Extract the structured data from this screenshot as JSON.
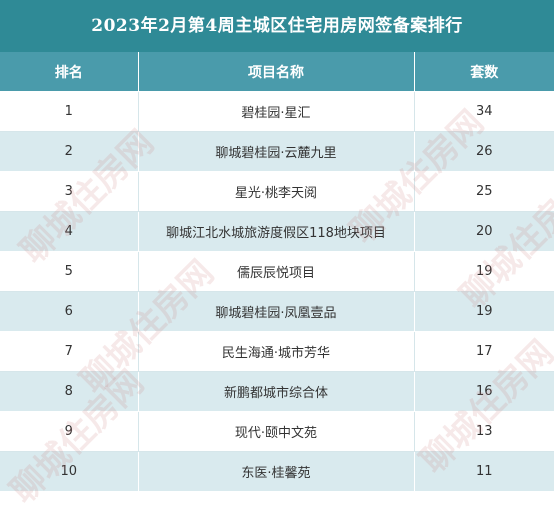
{
  "title": "2023年2月第4周主城区住宅用房网签备案排行",
  "headers": {
    "rank": "排名",
    "project": "项目名称",
    "units": "套数"
  },
  "rows": [
    {
      "rank": "1",
      "project": "碧桂园·星汇",
      "units": "34"
    },
    {
      "rank": "2",
      "project": "聊城碧桂园·云麓九里",
      "units": "26"
    },
    {
      "rank": "3",
      "project": "星光·桃李天阅",
      "units": "25"
    },
    {
      "rank": "4",
      "project": "聊城江北水城旅游度假区118地块项目",
      "units": "20"
    },
    {
      "rank": "5",
      "project": "儒辰辰悦项目",
      "units": "19"
    },
    {
      "rank": "6",
      "project": "聊城碧桂园·凤凰壹品",
      "units": "19"
    },
    {
      "rank": "7",
      "project": "民生海通·城市芳华",
      "units": "17"
    },
    {
      "rank": "8",
      "project": "新鹏都城市综合体",
      "units": "16"
    },
    {
      "rank": "9",
      "project": "现代·颐中文苑",
      "units": "13"
    },
    {
      "rank": "10",
      "project": "东医·桂馨苑",
      "units": "11"
    }
  ],
  "watermark": "聊城住房网",
  "colors": {
    "title_bg": "#2f8a96",
    "header_bg": "#4a9bab",
    "stripe_bg": "#d9eaee"
  }
}
